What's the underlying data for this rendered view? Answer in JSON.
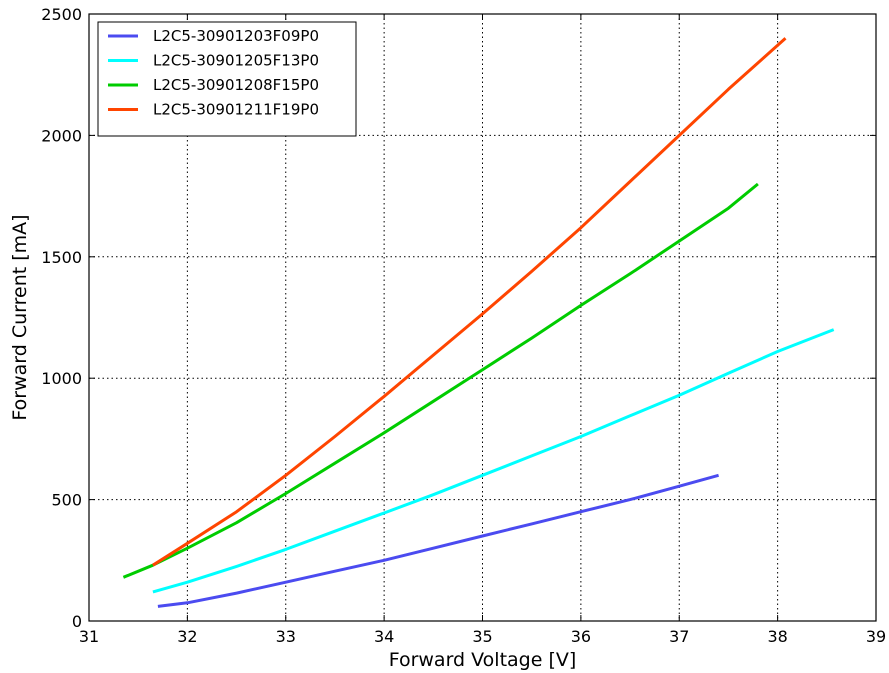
{
  "chart_data": {
    "type": "line",
    "title": "",
    "xlabel": "Forward Voltage [V]",
    "ylabel": "Forward Current [mA]",
    "xlim": [
      31,
      39
    ],
    "ylim": [
      0,
      2500
    ],
    "xticks": [
      31,
      32,
      33,
      34,
      35,
      36,
      37,
      38,
      39
    ],
    "yticks": [
      0,
      500,
      1000,
      1500,
      2000,
      2500
    ],
    "xtick_labels": [
      "31",
      "32",
      "33",
      "34",
      "35",
      "36",
      "37",
      "38",
      "39"
    ],
    "ytick_labels": [
      "0",
      "500",
      "1000",
      "1500",
      "2000",
      "2500"
    ],
    "grid": true,
    "legend_position": "top-left",
    "series": [
      {
        "name": "L2C5-30901203F09P0",
        "color": "#4b4bf0",
        "points": [
          [
            31.7,
            60
          ],
          [
            32,
            75
          ],
          [
            32.5,
            115
          ],
          [
            33,
            160
          ],
          [
            33.5,
            205
          ],
          [
            34,
            250
          ],
          [
            34.5,
            300
          ],
          [
            35,
            350
          ],
          [
            35.5,
            400
          ],
          [
            36,
            450
          ],
          [
            36.5,
            500
          ],
          [
            37,
            555
          ],
          [
            37.4,
            600
          ]
        ]
      },
      {
        "name": "L2C5-30901205F13P0",
        "color": "#00ffff",
        "points": [
          [
            31.65,
            120
          ],
          [
            32,
            160
          ],
          [
            32.5,
            225
          ],
          [
            33,
            295
          ],
          [
            33.5,
            370
          ],
          [
            34,
            445
          ],
          [
            34.5,
            520
          ],
          [
            35,
            600
          ],
          [
            35.5,
            680
          ],
          [
            36,
            760
          ],
          [
            36.5,
            845
          ],
          [
            37,
            930
          ],
          [
            37.5,
            1020
          ],
          [
            38,
            1110
          ],
          [
            38.57,
            1200
          ]
        ]
      },
      {
        "name": "L2C5-30901208F15P0",
        "color": "#00cc00",
        "points": [
          [
            31.35,
            180
          ],
          [
            31.65,
            230
          ],
          [
            32,
            300
          ],
          [
            32.5,
            405
          ],
          [
            33,
            525
          ],
          [
            33.5,
            650
          ],
          [
            34,
            775
          ],
          [
            34.5,
            905
          ],
          [
            35,
            1035
          ],
          [
            35.5,
            1165
          ],
          [
            36,
            1300
          ],
          [
            36.5,
            1430
          ],
          [
            37,
            1565
          ],
          [
            37.5,
            1700
          ],
          [
            37.8,
            1800
          ]
        ]
      },
      {
        "name": "L2C5-30901211F19P0",
        "color": "#ff4500",
        "points": [
          [
            31.65,
            230
          ],
          [
            32,
            320
          ],
          [
            32.5,
            450
          ],
          [
            33,
            600
          ],
          [
            33.5,
            760
          ],
          [
            34,
            925
          ],
          [
            34.5,
            1095
          ],
          [
            35,
            1265
          ],
          [
            35.5,
            1440
          ],
          [
            36,
            1620
          ],
          [
            36.5,
            1810
          ],
          [
            37,
            2000
          ],
          [
            37.5,
            2190
          ],
          [
            38.08,
            2400
          ]
        ]
      }
    ]
  }
}
